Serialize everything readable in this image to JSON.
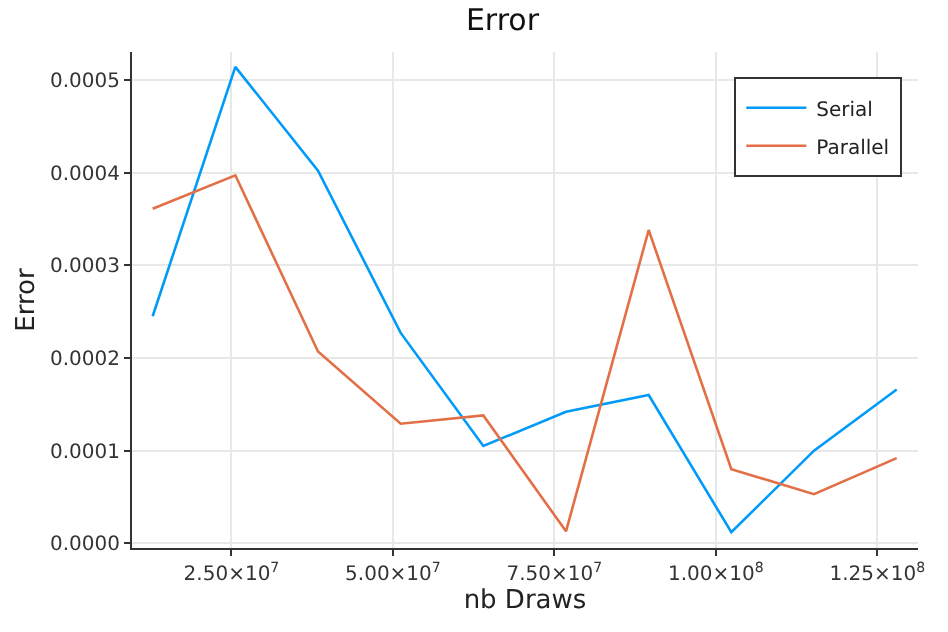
{
  "chart_data": {
    "type": "line",
    "title": "Error",
    "xlabel": "nb Draws",
    "ylabel": "Error",
    "x": [
      12800000,
      25600000,
      38400000,
      51200000,
      64000000,
      76800000,
      89600000,
      102400000,
      115200000,
      128000000
    ],
    "series": [
      {
        "name": "Serial",
        "color": "#009af9",
        "values": [
          0.000245,
          0.000514,
          0.000402,
          0.000227,
          0.000105,
          0.000142,
          0.00016,
          1.2e-05,
          0.0001,
          0.000166
        ]
      },
      {
        "name": "Parallel",
        "color": "#e26f46",
        "values": [
          0.000361,
          0.000397,
          0.000207,
          0.000129,
          0.000138,
          1.3e-05,
          0.000338,
          8e-05,
          5.3e-05,
          9.2e-05
        ]
      }
    ],
    "xlim": [
      9600000,
      131300000
    ],
    "ylim": [
      -5e-06,
      0.00053
    ],
    "xticks": [
      {
        "value": 25000000,
        "label": "2.50×10$^{7}$"
      },
      {
        "value": 50000000,
        "label": "5.00×10$^{7}$"
      },
      {
        "value": 75000000,
        "label": "7.50×10$^{7}$"
      },
      {
        "value": 100000000,
        "label": "1.00×10$^{8}$"
      },
      {
        "value": 125000000,
        "label": "1.25×10$^{8}$"
      }
    ],
    "yticks": [
      {
        "value": 0,
        "label": "0.0000"
      },
      {
        "value": 0.0001,
        "label": "0.0001"
      },
      {
        "value": 0.0002,
        "label": "0.0002"
      },
      {
        "value": 0.0003,
        "label": "0.0003"
      },
      {
        "value": 0.0004,
        "label": "0.0004"
      },
      {
        "value": 0.0005,
        "label": "0.0005"
      }
    ],
    "grid": true,
    "legend": "top right",
    "marker": "none",
    "line_style": "solid"
  }
}
